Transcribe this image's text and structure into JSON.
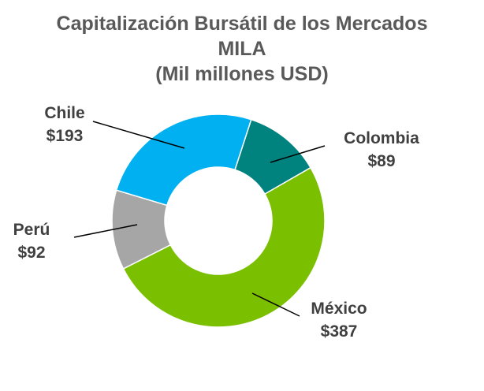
{
  "chart_data": {
    "type": "pie",
    "title": [
      "Capitalización Bursátil de los Mercados",
      "MILA",
      "(Mil millones USD)"
    ],
    "slices": [
      {
        "name": "Colombia",
        "value": 89,
        "value_label": "$89",
        "color": "#00827F"
      },
      {
        "name": "México",
        "value": 387,
        "value_label": "$387",
        "color": "#7AC000"
      },
      {
        "name": "Perú",
        "value": 92,
        "value_label": "$92",
        "color": "#A6A6A6"
      },
      {
        "name": "Chile",
        "value": 193,
        "value_label": "$193",
        "color": "#00B0F0"
      }
    ],
    "start_angle_deg": 18,
    "donut": true
  }
}
